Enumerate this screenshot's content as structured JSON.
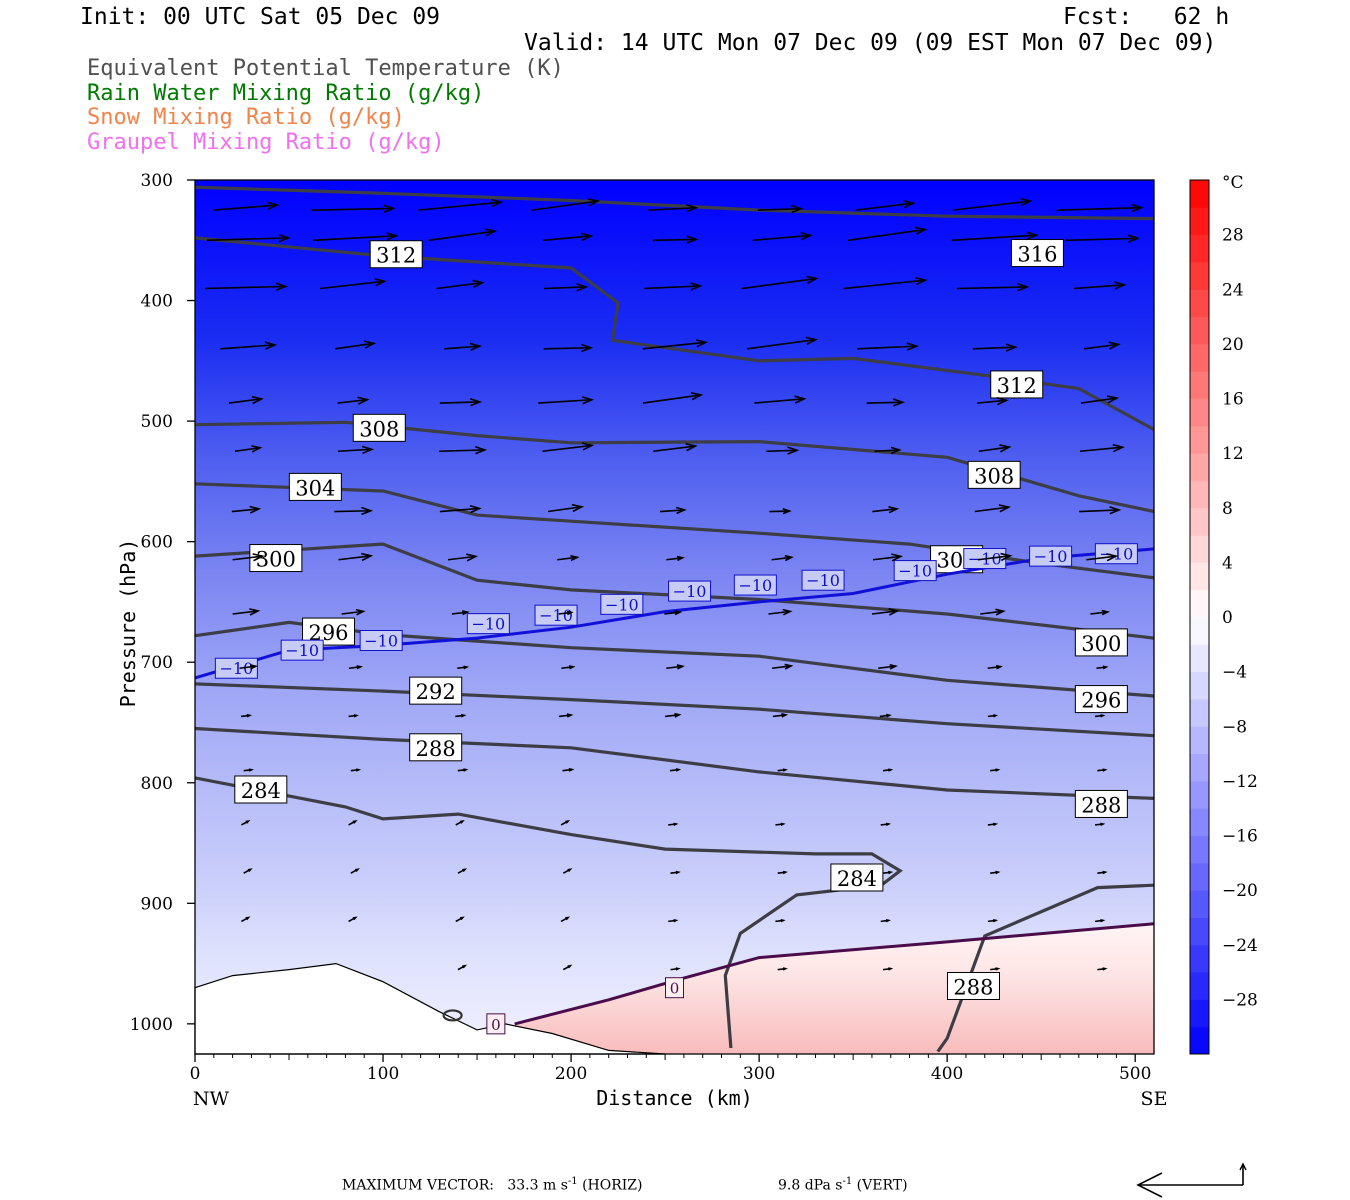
{
  "header": {
    "init": "Init: 00 UTC Sat 05 Dec 09",
    "fcst": "Fcst:   62 h",
    "valid": "Valid: 14 UTC Mon 07 Dec 09 (09 EST Mon 07 Dec 09)"
  },
  "legend": [
    {
      "text": "Equivalent Potential Temperature (K)",
      "color": "#505050"
    },
    {
      "text": "Rain Water Mixing Ratio (g/kg)",
      "color": "#007a00"
    },
    {
      "text": "Snow Mixing Ratio (g/kg)",
      "color": "#f0844a"
    },
    {
      "text": "Graupel Mixing Ratio (g/kg)",
      "color": "#f070f0"
    }
  ],
  "footer": {
    "label": "MAXIMUM VECTOR:",
    "horiz_value": "33.3 m s",
    "horiz_exp": "-1",
    "horiz_unit": " (HORIZ)",
    "vert_value": "9.8 dPa s",
    "vert_exp": "-1",
    "vert_unit": " (VERT)"
  },
  "chart_data": {
    "type": "cross-section contour",
    "title": "",
    "xlabel": "Distance (km)",
    "ylabel": "Pressure (hPa)",
    "xlim": [
      0,
      510
    ],
    "ylim": [
      1025,
      300
    ],
    "x_ticks": [
      0,
      100,
      200,
      300,
      400,
      500
    ],
    "y_ticks": [
      300,
      400,
      500,
      600,
      700,
      800,
      900,
      1000
    ],
    "x_end_labels": {
      "left": "NW",
      "right": "SE"
    },
    "colorbar": {
      "unit": "°C",
      "labels": [
        "28",
        "24",
        "20",
        "16",
        "12",
        "8",
        "4",
        "0",
        "−4",
        "−8",
        "−12",
        "−16",
        "−20",
        "−24",
        "−28"
      ],
      "range": [
        -32,
        32
      ],
      "cold_color": "#0000ff",
      "warm_color": "#ff0000"
    },
    "theta_e_contours": [
      {
        "level": 316,
        "label": "316",
        "pts": [
          [
            0,
            306
          ],
          [
            100,
            311
          ],
          [
            200,
            317
          ],
          [
            300,
            325
          ],
          [
            400,
            330
          ],
          [
            510,
            332
          ]
        ]
      },
      {
        "level": 312,
        "label": "312",
        "pts": [
          [
            0,
            348
          ],
          [
            100,
            363
          ],
          [
            200,
            373
          ],
          [
            225,
            402
          ],
          [
            222,
            433
          ],
          [
            300,
            450
          ],
          [
            350,
            448
          ],
          [
            420,
            462
          ],
          [
            470,
            473
          ],
          [
            510,
            507
          ]
        ]
      },
      {
        "level": 308,
        "label": "308",
        "pts": [
          [
            0,
            503
          ],
          [
            80,
            501
          ],
          [
            150,
            512
          ],
          [
            200,
            518
          ],
          [
            300,
            517
          ],
          [
            400,
            530
          ],
          [
            470,
            562
          ],
          [
            510,
            575
          ]
        ]
      },
      {
        "level": 304,
        "label": "304",
        "pts": [
          [
            0,
            552
          ],
          [
            100,
            558
          ],
          [
            150,
            578
          ],
          [
            200,
            583
          ],
          [
            300,
            593
          ],
          [
            380,
            602
          ],
          [
            450,
            618
          ],
          [
            510,
            630
          ]
        ]
      },
      {
        "level": 300,
        "label": "300",
        "pts": [
          [
            0,
            612
          ],
          [
            100,
            602
          ],
          [
            150,
            632
          ],
          [
            200,
            640
          ],
          [
            300,
            648
          ],
          [
            400,
            660
          ],
          [
            510,
            680
          ]
        ]
      },
      {
        "level": 296,
        "label": "296",
        "pts": [
          [
            0,
            678
          ],
          [
            50,
            667
          ],
          [
            100,
            677
          ],
          [
            200,
            688
          ],
          [
            300,
            695
          ],
          [
            400,
            715
          ],
          [
            510,
            728
          ]
        ]
      },
      {
        "level": 292,
        "label": "292",
        "pts": [
          [
            0,
            718
          ],
          [
            100,
            724
          ],
          [
            200,
            731
          ],
          [
            300,
            739
          ],
          [
            400,
            751
          ],
          [
            510,
            761
          ]
        ]
      },
      {
        "level": 288,
        "label": "288",
        "pts": [
          [
            0,
            755
          ],
          [
            100,
            764
          ],
          [
            200,
            771
          ],
          [
            300,
            791
          ],
          [
            400,
            806
          ],
          [
            510,
            813
          ]
        ]
      },
      {
        "level": 284,
        "label": "284",
        "pts": [
          [
            0,
            796
          ],
          [
            80,
            820
          ],
          [
            100,
            830
          ],
          [
            140,
            826
          ],
          [
            200,
            843
          ],
          [
            250,
            855
          ],
          [
            330,
            859
          ],
          [
            360,
            859
          ],
          [
            375,
            873
          ],
          [
            365,
            885
          ],
          [
            320,
            893
          ],
          [
            290,
            925
          ],
          [
            282,
            960
          ],
          [
            285,
            1020
          ]
        ]
      },
      {
        "level": 288,
        "label": "288",
        "pts": [
          [
            510,
            885
          ],
          [
            480,
            887
          ],
          [
            420,
            927
          ],
          [
            400,
            1012
          ],
          [
            395,
            1023
          ]
        ]
      }
    ],
    "temperature_contours": [
      {
        "level": -10,
        "label": "−10",
        "pts": [
          [
            0,
            713
          ],
          [
            50,
            690
          ],
          [
            100,
            686
          ],
          [
            150,
            680
          ],
          [
            200,
            671
          ],
          [
            250,
            658
          ],
          [
            300,
            650
          ],
          [
            350,
            643
          ],
          [
            400,
            627
          ],
          [
            450,
            614
          ],
          [
            510,
            606
          ]
        ]
      },
      {
        "level": 0,
        "label": "0",
        "pts": [
          [
            170,
            1000
          ],
          [
            220,
            980
          ],
          [
            260,
            962
          ],
          [
            300,
            945
          ],
          [
            400,
            932
          ],
          [
            510,
            917
          ]
        ]
      }
    ],
    "wind_vectors_note": "NW-to-SE cross-section wind vectors; strongest aloft (max 33.3 m/s)"
  }
}
